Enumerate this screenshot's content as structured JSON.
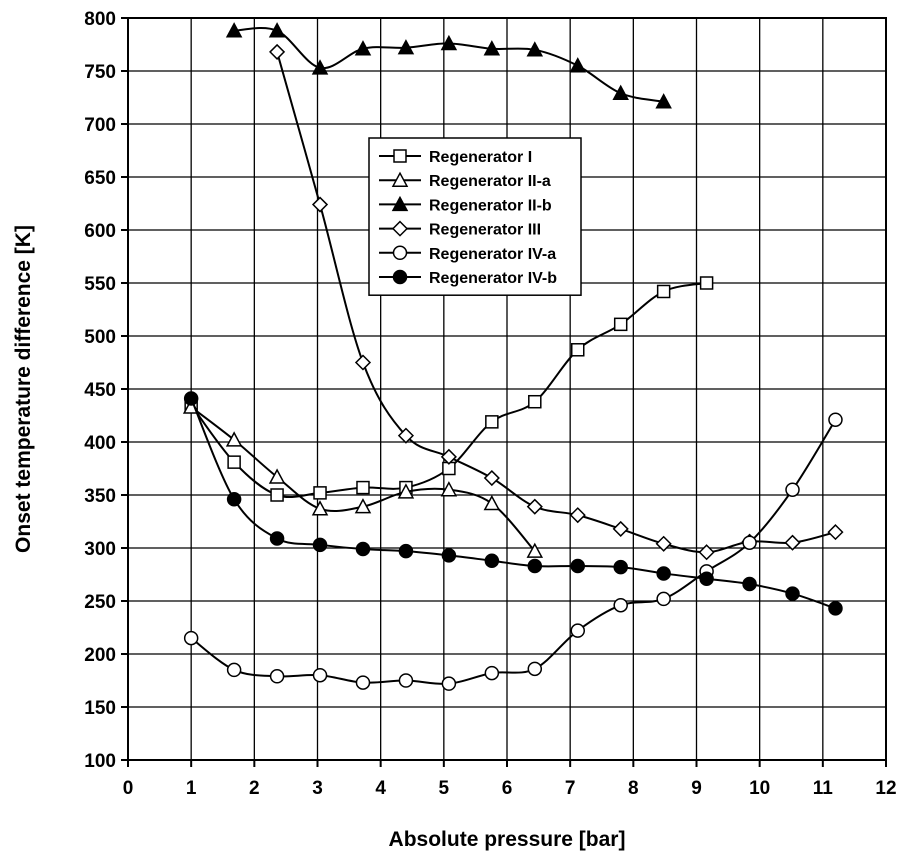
{
  "chart_data": {
    "type": "line",
    "title": "",
    "xlabel": "Absolute pressure [bar]",
    "ylabel": "Onset temperature difference [K]",
    "xlim": [
      0,
      12
    ],
    "ylim": [
      100,
      800
    ],
    "x_ticks": [
      "0",
      "1",
      "2",
      "3",
      "4",
      "5",
      "6",
      "7",
      "8",
      "9",
      "10",
      "11",
      "12"
    ],
    "y_ticks": [
      "100",
      "150",
      "200",
      "250",
      "300",
      "350",
      "400",
      "450",
      "500",
      "550",
      "600",
      "650",
      "700",
      "750",
      "800"
    ],
    "grid": true,
    "legend_position": "center",
    "series": [
      {
        "name": "Regenerator I",
        "marker": "square-open",
        "x": [
          1.0,
          1.68,
          2.36,
          3.04,
          3.72,
          4.4,
          5.08,
          5.76,
          6.44,
          7.12,
          7.8,
          8.48,
          9.16
        ],
        "y": [
          435,
          381,
          350,
          352,
          357,
          357,
          375,
          419,
          438,
          487,
          511,
          542,
          550
        ]
      },
      {
        "name": "Regenerator II-a",
        "marker": "triangle-open",
        "x": [
          1.0,
          1.68,
          2.36,
          3.04,
          3.72,
          4.4,
          5.08,
          5.76,
          6.44
        ],
        "y": [
          433,
          402,
          367,
          337,
          339,
          353,
          355,
          342,
          297
        ]
      },
      {
        "name": "Regenerator II-b",
        "marker": "triangle-filled",
        "x": [
          1.68,
          2.36,
          3.04,
          3.72,
          4.4,
          5.08,
          5.76,
          6.44,
          7.12,
          7.8,
          8.48
        ],
        "y": [
          788,
          788,
          753,
          771,
          772,
          776,
          771,
          770,
          755,
          729,
          721
        ]
      },
      {
        "name": "Regenerator III",
        "marker": "diamond-open",
        "x": [
          2.36,
          3.04,
          3.72,
          4.4,
          5.08,
          5.76,
          6.44,
          7.12,
          7.8,
          8.48,
          9.16,
          9.84,
          10.52,
          11.2
        ],
        "y": [
          768,
          624,
          475,
          406,
          386,
          366,
          339,
          331,
          318,
          304,
          296,
          306,
          305,
          315
        ]
      },
      {
        "name": "Regenerator IV-a",
        "marker": "circle-open",
        "x": [
          1.0,
          1.68,
          2.36,
          3.04,
          3.72,
          4.4,
          5.08,
          5.76,
          6.44,
          7.12,
          7.8,
          8.48,
          9.16,
          9.84,
          10.52,
          11.2
        ],
        "y": [
          215,
          185,
          179,
          180,
          173,
          175,
          172,
          182,
          186,
          222,
          246,
          252,
          278,
          305,
          355,
          421
        ]
      },
      {
        "name": "Regenerator IV-b",
        "marker": "circle-filled",
        "x": [
          1.0,
          1.68,
          2.36,
          3.04,
          3.72,
          4.4,
          5.08,
          5.76,
          6.44,
          7.12,
          7.8,
          8.48,
          9.16,
          9.84,
          10.52,
          11.2
        ],
        "y": [
          441,
          346,
          309,
          303,
          299,
          297,
          293,
          288,
          283,
          283,
          282,
          276,
          271,
          266,
          257,
          243
        ]
      }
    ]
  }
}
